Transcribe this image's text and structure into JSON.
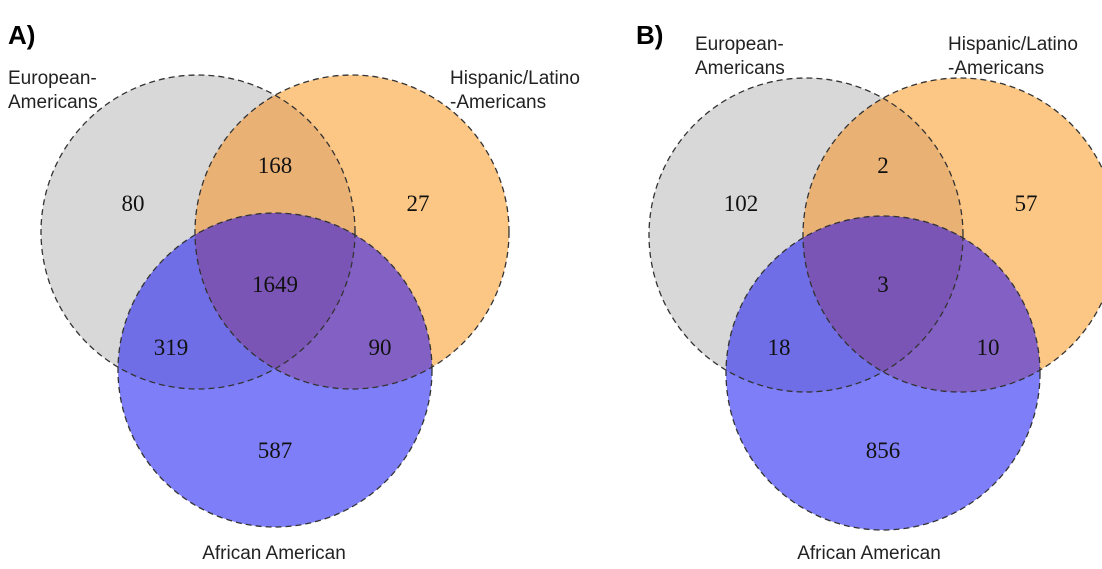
{
  "colors": {
    "european_fill": "#d8d8d8",
    "hispanic_fill": "#fcc784",
    "african_fill": "#7e7ef8",
    "european_hispanic": "#e9b174",
    "european_african": "#6f6ee6",
    "hispanic_african": "#8361c4",
    "all_three": "#7a55b6"
  },
  "panels": [
    {
      "letter": "A)",
      "labels": {
        "european": [
          "European-",
          "Americans"
        ],
        "hispanic": [
          "Hispanic/Latino",
          "-Americans"
        ],
        "african": [
          "African American"
        ]
      },
      "counts": {
        "european_only": "80",
        "european_hispanic": "168",
        "hispanic_only": "27",
        "all_three": "1649",
        "european_african": "319",
        "hispanic_african": "90",
        "african_only": "587"
      }
    },
    {
      "letter": "B)",
      "labels": {
        "european": [
          "European-",
          "Americans"
        ],
        "hispanic": [
          "Hispanic/Latino",
          "-Americans"
        ],
        "african": [
          "African American"
        ]
      },
      "counts": {
        "european_only": "102",
        "european_hispanic": "2",
        "hispanic_only": "57",
        "all_three": "3",
        "european_african": "18",
        "hispanic_african": "10",
        "african_only": "856"
      }
    }
  ]
}
